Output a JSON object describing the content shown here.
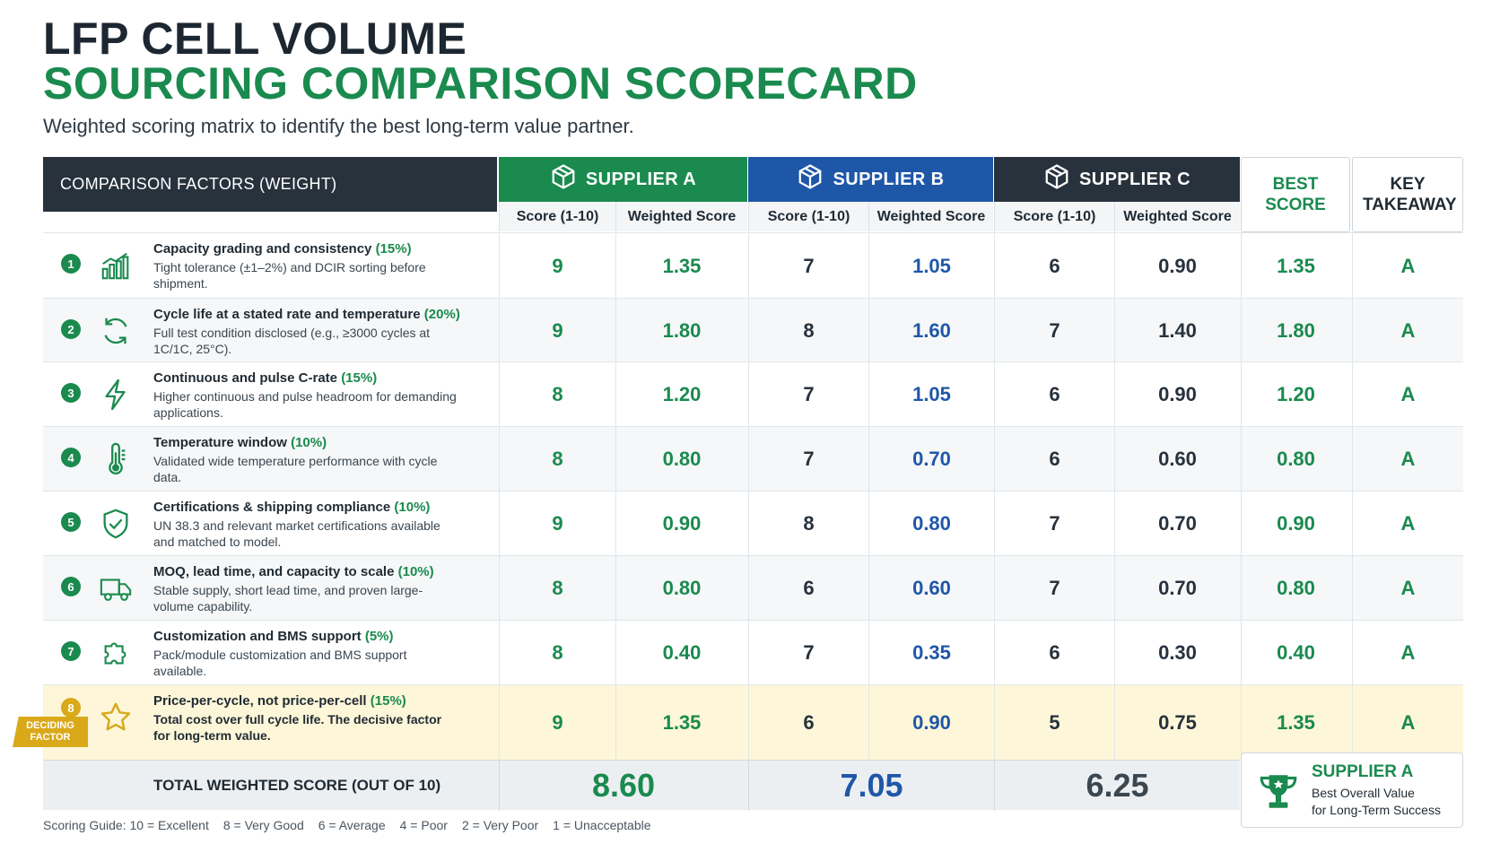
{
  "title": {
    "line1": "LFP CELL VOLUME",
    "line2": "SOURCING COMPARISON SCORECARD"
  },
  "subtitle": "Weighted scoring matrix to identify the best long-term value partner.",
  "header": {
    "factors": "COMPARISON FACTORS (WEIGHT)",
    "supplier_a": "SUPPLIER A",
    "supplier_b": "SUPPLIER B",
    "supplier_c": "SUPPLIER C",
    "score_label": "Score (1-10)",
    "weighted_label": "Weighted Score",
    "best_score": "BEST SCORE",
    "key_takeaway": "KEY TAKEAWAY"
  },
  "rows": [
    {
      "n": "1",
      "icon": "bar-chart-icon",
      "title": "Capacity grading and consistency",
      "weight": "(15%)",
      "desc": "Tight tolerance (±1–2%) and DCIR sorting before shipment.",
      "a_score": "9",
      "a_w": "1.35",
      "b_score": "7",
      "b_w": "1.05",
      "c_score": "6",
      "c_w": "0.90",
      "best": "1.35",
      "key": "A"
    },
    {
      "n": "2",
      "icon": "cycle-arrows-icon",
      "title": "Cycle life at a stated rate and temperature",
      "weight": "(20%)",
      "desc": "Full test condition disclosed (e.g., ≥3000 cycles at 1C/1C, 25°C).",
      "a_score": "9",
      "a_w": "1.80",
      "b_score": "8",
      "b_w": "1.60",
      "c_score": "7",
      "c_w": "1.40",
      "best": "1.80",
      "key": "A"
    },
    {
      "n": "3",
      "icon": "lightning-icon",
      "title": "Continuous and pulse C-rate",
      "weight": "(15%)",
      "desc": "Higher continuous and pulse headroom for demanding applications.",
      "a_score": "8",
      "a_w": "1.20",
      "b_score": "7",
      "b_w": "1.05",
      "c_score": "6",
      "c_w": "0.90",
      "best": "1.20",
      "key": "A"
    },
    {
      "n": "4",
      "icon": "thermometer-icon",
      "title": "Temperature window",
      "weight": "(10%)",
      "desc": "Validated wide temperature performance with cycle data.",
      "a_score": "8",
      "a_w": "0.80",
      "b_score": "7",
      "b_w": "0.70",
      "c_score": "6",
      "c_w": "0.60",
      "best": "0.80",
      "key": "A"
    },
    {
      "n": "5",
      "icon": "shield-check-icon",
      "title": "Certifications & shipping compliance",
      "weight": "(10%)",
      "desc": "UN 38.3 and relevant market certifications available and matched to model.",
      "a_score": "9",
      "a_w": "0.90",
      "b_score": "8",
      "b_w": "0.80",
      "c_score": "7",
      "c_w": "0.70",
      "best": "0.90",
      "key": "A"
    },
    {
      "n": "6",
      "icon": "truck-icon",
      "title": "MOQ, lead time, and capacity to scale",
      "weight": "(10%)",
      "desc": "Stable supply, short lead time, and proven large-volume capability.",
      "a_score": "8",
      "a_w": "0.80",
      "b_score": "6",
      "b_w": "0.60",
      "c_score": "7",
      "c_w": "0.70",
      "best": "0.80",
      "key": "A"
    },
    {
      "n": "7",
      "icon": "puzzle-icon",
      "title": "Customization and BMS support",
      "weight": "(5%)",
      "desc": "Pack/module customization and BMS support available.",
      "a_score": "8",
      "a_w": "0.40",
      "b_score": "7",
      "b_w": "0.35",
      "c_score": "6",
      "c_w": "0.30",
      "best": "0.40",
      "key": "A"
    },
    {
      "n": "8",
      "icon": "star-icon",
      "title": "Price-per-cycle, not price-per-cell",
      "weight": "(15%)",
      "desc": "Total cost over full cycle life. The decisive factor for long-term value.",
      "a_score": "9",
      "a_w": "1.35",
      "b_score": "6",
      "b_w": "0.90",
      "c_score": "5",
      "c_w": "0.75",
      "best": "1.35",
      "key": "A",
      "badge": "DECIDING FACTOR"
    }
  ],
  "total": {
    "label": "TOTAL WEIGHTED SCORE (OUT OF 10)",
    "a": "8.60",
    "b": "7.05",
    "c": "6.25"
  },
  "winner": {
    "title": "SUPPLIER A",
    "line1": "Best Overall Value",
    "line2": "for Long-Term Success",
    "icon": "trophy-icon"
  },
  "guide": [
    "Scoring Guide: 10 = Excellent",
    "8 = Very Good",
    "6 = Average",
    "4 = Poor",
    "2 = Very Poor",
    "1 = Unacceptable"
  ],
  "colors": {
    "green": "#1a8a4e",
    "blue": "#1f57a8",
    "dark": "#28323d",
    "gold": "#d9a91a",
    "highlight": "#fdf6d8"
  }
}
